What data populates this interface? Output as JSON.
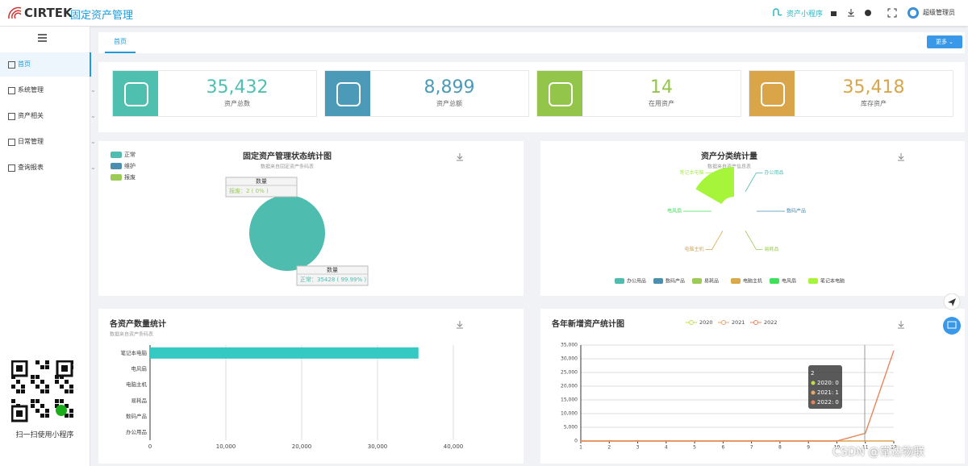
{
  "header": {
    "logo": "CIRTEK",
    "title": "固定资产管理",
    "mini_program": "资产小程序",
    "user": "超级管理员"
  },
  "sidebar": {
    "items": [
      "首页",
      "系统管理",
      "资产相关",
      "日常管理",
      "查询报表"
    ],
    "qr_caption": "扫一扫使用小程序"
  },
  "tabs": {
    "items": [
      "首页"
    ],
    "more": "更多"
  },
  "stats": [
    {
      "value": "35,432",
      "label": "资产总数",
      "color": "#4fbfb0"
    },
    {
      "value": "8,899",
      "label": "资产总额",
      "color": "#4a9ab8"
    },
    {
      "value": "14",
      "label": "在用资产",
      "color": "#93c54b"
    },
    {
      "value": "35,418",
      "label": "库存资产",
      "color": "#d9a548"
    }
  ],
  "watermark": "CSDN @常达物联",
  "chart_data": [
    {
      "type": "pie",
      "title": "固定资产管理状态统计图",
      "subtitle": "数据来自固定资产条码表",
      "categories": [
        "正常",
        "维护",
        "报废"
      ],
      "values": [
        35428,
        2,
        2
      ],
      "colors": [
        "#4fbcb0",
        "#4a8fb0",
        "#9ccc54"
      ],
      "value_labels": [
        "35428 ( 99.99% )",
        null,
        "2 ( 0% )"
      ],
      "tooltip_title": "数量",
      "legend": "top-left"
    },
    {
      "type": "rose",
      "title": "资产分类统计量",
      "subtitle": "数据来自资产信息表",
      "categories": [
        "办公用品",
        "数码产品",
        "易耗品",
        "电脑主机",
        "电风扇",
        "笔记本电脑"
      ],
      "values": [
        0,
        0,
        0,
        0,
        0,
        35418
      ],
      "colors": [
        "#4fbcb0",
        "#4a8fb0",
        "#9ccc54",
        "#d9a94a",
        "#3fe05a",
        "#a6f53a"
      ],
      "legend": "bottom"
    },
    {
      "type": "hbar",
      "title": "各资产数量统计",
      "subtitle": "数据来自资产条码表",
      "categories": [
        "办公用品",
        "数码产品",
        "易耗品",
        "电脑主机",
        "电风扇",
        "笔记本电脑"
      ],
      "values": [
        0,
        0,
        0,
        0,
        0,
        35400
      ],
      "color": "#35c9c4",
      "xlim": [
        0,
        40000
      ],
      "xticks": [
        0,
        {
          "value": 10000,
          "label": "10,000"
        },
        {
          "value": 20000,
          "label": "20,000"
        },
        {
          "value": 30000,
          "label": "30,000"
        },
        {
          "value": 40000,
          "label": "40,000"
        }
      ],
      "grid": true
    },
    {
      "type": "line",
      "title": "各年新增资产统计图",
      "x": [
        1,
        2,
        3,
        4,
        5,
        6,
        7,
        8,
        9,
        10,
        11,
        12
      ],
      "series": [
        {
          "name": "2020",
          "color": "#c8d94a",
          "values": [
            0,
            0,
            0,
            0,
            0,
            0,
            0,
            0,
            0,
            0,
            0,
            0
          ]
        },
        {
          "name": "2021",
          "color": "#e8a86a",
          "values": [
            0,
            1,
            0,
            0,
            0,
            0,
            0,
            0,
            0,
            0,
            0,
            0
          ]
        },
        {
          "name": "2022",
          "color": "#e8845a",
          "values": [
            0,
            0,
            0,
            0,
            0,
            0,
            0,
            0,
            0,
            0,
            2800,
            33000
          ]
        }
      ],
      "xlim": [
        1,
        12
      ],
      "xticks": [
        1,
        2,
        3,
        4,
        5,
        6,
        7,
        8,
        9,
        10,
        11,
        12
      ],
      "ylim": [
        0,
        35000
      ],
      "yticks": [
        0,
        {
          "value": 5000,
          "label": "5,000"
        },
        {
          "value": 10000,
          "label": "10,000"
        },
        {
          "value": 15000,
          "label": "15,000"
        },
        {
          "value": 20000,
          "label": "20,000"
        },
        {
          "value": 25000,
          "label": "25,000"
        },
        {
          "value": 30000,
          "label": "30,000"
        },
        {
          "value": 35000,
          "label": "35,000"
        }
      ],
      "grid": true,
      "legend": "top"
    }
  ]
}
